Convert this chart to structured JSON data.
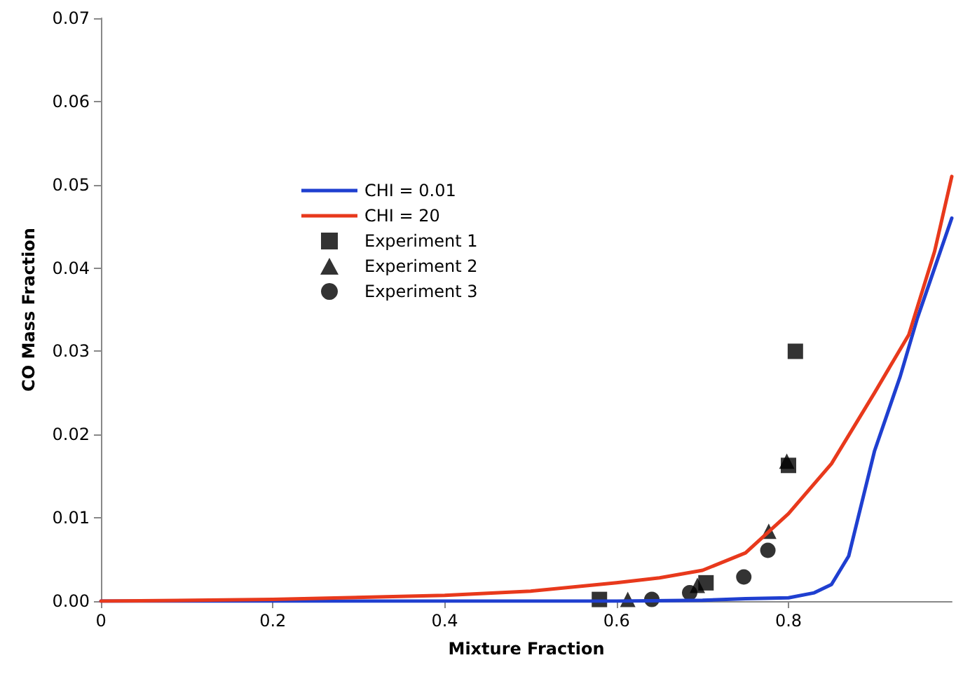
{
  "chart_data": {
    "type": "line",
    "xlabel": "Mixture Fraction",
    "ylabel": "CO Mass Fraction",
    "xlim": [
      0,
      0.99
    ],
    "xticks": [
      0,
      0.2,
      0.4,
      0.6,
      0.8
    ],
    "ylim": [
      0,
      0.07
    ],
    "yticks": [
      {
        "value": 0,
        "label": "0.00"
      },
      {
        "value": 0.01,
        "label": "0.01"
      },
      {
        "value": 0.02,
        "label": "0.02"
      },
      {
        "value": 0.03,
        "label": "0.03"
      },
      {
        "value": 0.04,
        "label": "0.04"
      },
      {
        "value": 0.05,
        "label": "0.05"
      },
      {
        "value": 0.06,
        "label": "0.06"
      },
      {
        "value": 0.07,
        "label": "0.07"
      }
    ],
    "grid": false,
    "legend": "top left",
    "series": [
      {
        "name": "CHI = 0.01",
        "color": "#1f3fd0",
        "marker": "none",
        "x": [
          0,
          0.2,
          0.4,
          0.6,
          0.7,
          0.75,
          0.8,
          0.83,
          0.85,
          0.87,
          0.9,
          0.93,
          0.95,
          0.97,
          0.99
        ],
        "values": [
          0,
          0,
          0,
          0,
          0.0001,
          0.0003,
          0.0004,
          0.001,
          0.002,
          0.0054,
          0.018,
          0.027,
          0.034,
          0.04,
          0.046
        ]
      },
      {
        "name": "CHI = 20",
        "color": "#e8391c",
        "marker": "none",
        "x": [
          0,
          0.2,
          0.4,
          0.5,
          0.6,
          0.65,
          0.7,
          0.75,
          0.8,
          0.85,
          0.9,
          0.94,
          0.97,
          0.99
        ],
        "values": [
          0,
          0.0002,
          0.0007,
          0.0012,
          0.0022,
          0.0028,
          0.0037,
          0.0058,
          0.0105,
          0.0165,
          0.025,
          0.032,
          0.042,
          0.051
        ]
      },
      {
        "name": "Experiment 1",
        "type": "scatter",
        "color": "#000000",
        "marker": "square",
        "x": [
          0.58,
          0.704,
          0.8,
          0.808
        ],
        "values": [
          0.0002,
          0.0022,
          0.0163,
          0.03
        ]
      },
      {
        "name": "Experiment 2",
        "type": "scatter",
        "color": "#000000",
        "marker": "triangle",
        "x": [
          0.613,
          0.694,
          0.777,
          0.798
        ],
        "values": [
          0.0002,
          0.0019,
          0.0084,
          0.0168
        ]
      },
      {
        "name": "Experiment 3",
        "type": "scatter",
        "color": "#000000",
        "marker": "circle",
        "x": [
          0.641,
          0.685,
          0.748,
          0.776
        ],
        "values": [
          0.0002,
          0.001,
          0.0029,
          0.0061
        ]
      }
    ]
  }
}
